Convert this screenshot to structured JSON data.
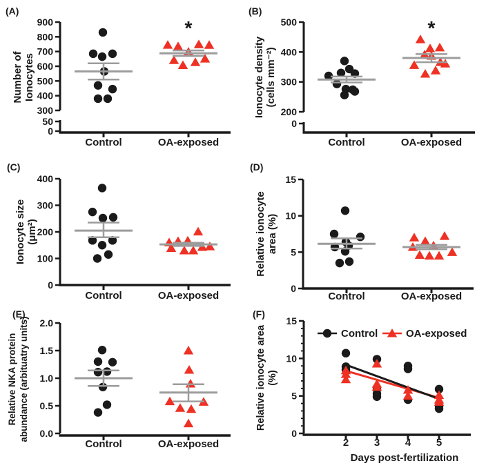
{
  "colors": {
    "control": "#1a1a1a",
    "oa_exposed": "#ee3124",
    "stats_line": "#9c9c9c"
  },
  "chart_data": [
    {
      "panel": "(A)",
      "type": "scatter",
      "ylabel_lines": [
        "Number of",
        "Ionocytes"
      ],
      "ylim": [
        300,
        900
      ],
      "yticks": [
        300,
        400,
        500,
        600,
        700,
        800,
        900
      ],
      "break_ticks": [
        50,
        0
      ],
      "categories": [
        "Control",
        "OA-exposed"
      ],
      "significance": {
        "category": "OA-exposed",
        "label": "*"
      },
      "series": [
        {
          "name": "Control",
          "marker": "circle",
          "color": "#1a1a1a",
          "mean": 565,
          "sem": [
            510,
            620
          ],
          "points": [
            {
              "dx": -1,
              "y": 830
            },
            {
              "dx": -15,
              "y": 685
            },
            {
              "dx": 13,
              "y": 685
            },
            {
              "dx": -2,
              "y": 665
            },
            {
              "dx": 1,
              "y": 565
            },
            {
              "dx": -8,
              "y": 470
            },
            {
              "dx": 13,
              "y": 445
            },
            {
              "dx": -8,
              "y": 380
            },
            {
              "dx": 6,
              "y": 380
            }
          ]
        },
        {
          "name": "OA-exposed",
          "marker": "triangle",
          "color": "#ee3124",
          "mean": 688,
          "sem": [
            670,
            707
          ],
          "points": [
            {
              "dx": -30,
              "y": 745
            },
            {
              "dx": -15,
              "y": 735
            },
            {
              "dx": 15,
              "y": 748
            },
            {
              "dx": 30,
              "y": 744
            },
            {
              "dx": 0,
              "y": 698
            },
            {
              "dx": -21,
              "y": 641
            },
            {
              "dx": -8,
              "y": 607
            },
            {
              "dx": 10,
              "y": 627
            },
            {
              "dx": 24,
              "y": 651
            }
          ]
        }
      ]
    },
    {
      "panel": "(B)",
      "type": "scatter",
      "ylabel_lines": [
        "Ionocyte density",
        "(cells mm⁻²)"
      ],
      "ylim": [
        200,
        500
      ],
      "yticks": [
        200,
        300,
        400,
        500
      ],
      "break_ticks": [
        0
      ],
      "categories": [
        "Control",
        "OA-exposed"
      ],
      "significance": {
        "category": "OA-exposed",
        "label": "*"
      },
      "series": [
        {
          "name": "Control",
          "marker": "circle",
          "color": "#1a1a1a",
          "mean": 308,
          "sem": [
            298,
            318
          ],
          "points": [
            {
              "dx": -3,
              "y": 370
            },
            {
              "dx": 4,
              "y": 343
            },
            {
              "dx": -8,
              "y": 330
            },
            {
              "dx": 12,
              "y": 328
            },
            {
              "dx": -26,
              "y": 320
            },
            {
              "dx": -14,
              "y": 293
            },
            {
              "dx": -1,
              "y": 276
            },
            {
              "dx": 9,
              "y": 274
            },
            {
              "dx": 12,
              "y": 268
            },
            {
              "dx": -3,
              "y": 256
            }
          ]
        },
        {
          "name": "OA-exposed",
          "marker": "triangle",
          "color": "#ee3124",
          "mean": 380,
          "sem": [
            366,
            393
          ],
          "points": [
            {
              "dx": -16,
              "y": 442
            },
            {
              "dx": -2,
              "y": 412
            },
            {
              "dx": 12,
              "y": 415
            },
            {
              "dx": -10,
              "y": 391
            },
            {
              "dx": 0,
              "y": 387
            },
            {
              "dx": -25,
              "y": 356
            },
            {
              "dx": 13,
              "y": 366
            },
            {
              "dx": 20,
              "y": 361
            },
            {
              "dx": 6,
              "y": 338
            },
            {
              "dx": -9,
              "y": 327
            }
          ]
        }
      ]
    },
    {
      "panel": "(C)",
      "type": "scatter",
      "ylabel_lines": [
        "Ionocyte size",
        "(μm²)"
      ],
      "ylim": [
        0,
        400
      ],
      "yticks": [
        0,
        100,
        200,
        300,
        400
      ],
      "categories": [
        "Control",
        "OA-exposed"
      ],
      "series": [
        {
          "name": "Control",
          "marker": "circle",
          "color": "#1a1a1a",
          "mean": 205,
          "sem": [
            180,
            235
          ],
          "points": [
            {
              "dx": -2,
              "y": 365
            },
            {
              "dx": -16,
              "y": 275
            },
            {
              "dx": 14,
              "y": 255
            },
            {
              "dx": -1,
              "y": 252
            },
            {
              "dx": -16,
              "y": 168
            },
            {
              "dx": 13,
              "y": 168
            },
            {
              "dx": -2,
              "y": 150
            },
            {
              "dx": 7,
              "y": 115
            },
            {
              "dx": -9,
              "y": 100
            }
          ]
        },
        {
          "name": "OA-exposed",
          "marker": "triangle",
          "color": "#ee3124",
          "mean": 153,
          "sem": [
            147,
            159
          ],
          "points": [
            {
              "dx": 14,
              "y": 201
            },
            {
              "dx": -1,
              "y": 167
            },
            {
              "dx": -15,
              "y": 165
            },
            {
              "dx": -28,
              "y": 160
            },
            {
              "dx": 31,
              "y": 145
            },
            {
              "dx": 20,
              "y": 143
            },
            {
              "dx": -25,
              "y": 139
            },
            {
              "dx": -6,
              "y": 130
            },
            {
              "dx": 7,
              "y": 130
            }
          ]
        }
      ]
    },
    {
      "panel": "(D)",
      "type": "scatter",
      "ylabel_lines": [
        "Relative ionocyte",
        "area (%)"
      ],
      "ylim": [
        0,
        15
      ],
      "yticks": [
        0,
        5,
        10,
        15
      ],
      "categories": [
        "Control",
        "OA-exposed"
      ],
      "series": [
        {
          "name": "Control",
          "marker": "circle",
          "color": "#1a1a1a",
          "mean": 6.15,
          "sem": [
            5.5,
            6.9
          ],
          "points": [
            {
              "dx": -2,
              "y": 10.7
            },
            {
              "dx": -18,
              "y": 7.5
            },
            {
              "dx": 20,
              "y": 7.1
            },
            {
              "dx": -1,
              "y": 6.4
            },
            {
              "dx": 3,
              "y": 5.9
            },
            {
              "dx": -17,
              "y": 5.7
            },
            {
              "dx": -2,
              "y": 5.1
            },
            {
              "dx": 4,
              "y": 3.7
            },
            {
              "dx": -10,
              "y": 3.5
            }
          ]
        },
        {
          "name": "OA-exposed",
          "marker": "triangle",
          "color": "#ee3124",
          "mean": 5.7,
          "sem": [
            5.4,
            6.0
          ],
          "points": [
            {
              "dx": 19,
              "y": 7.2
            },
            {
              "dx": -25,
              "y": 7.0
            },
            {
              "dx": -9,
              "y": 6.5
            },
            {
              "dx": 3,
              "y": 5.9
            },
            {
              "dx": -27,
              "y": 5.7
            },
            {
              "dx": 30,
              "y": 5.0
            },
            {
              "dx": -17,
              "y": 4.6
            },
            {
              "dx": -3,
              "y": 4.5
            },
            {
              "dx": 11,
              "y": 4.5
            }
          ]
        }
      ]
    },
    {
      "panel": "(E)",
      "type": "scatter",
      "ylabel_lines": [
        "Relative NKA protein",
        "abundance (arbituatry units)"
      ],
      "ylim": [
        0,
        2
      ],
      "yticks": [
        0,
        0.5,
        1,
        1.5,
        2
      ],
      "tick_decimals": 1,
      "categories": [
        "Control",
        "OA-exposed"
      ],
      "series": [
        {
          "name": "Control",
          "marker": "circle",
          "color": "#1a1a1a",
          "mean": 1.0,
          "sem": [
            0.86,
            1.14
          ],
          "points": [
            {
              "dx": -2,
              "y": 1.51
            },
            {
              "dx": -8,
              "y": 1.3
            },
            {
              "dx": 13,
              "y": 1.29
            },
            {
              "dx": 5,
              "y": 1.12
            },
            {
              "dx": -8,
              "y": 1.11
            },
            {
              "dx": -1,
              "y": 0.84
            },
            {
              "dx": 5,
              "y": 0.52
            },
            {
              "dx": -8,
              "y": 0.38
            }
          ]
        },
        {
          "name": "OA-exposed",
          "marker": "triangle",
          "color": "#ee3124",
          "mean": 0.74,
          "sem": [
            0.58,
            0.89
          ],
          "points": [
            {
              "dx": 0,
              "y": 1.5
            },
            {
              "dx": 1,
              "y": 1.15
            },
            {
              "dx": 3,
              "y": 0.9
            },
            {
              "dx": -27,
              "y": 0.58
            },
            {
              "dx": 22,
              "y": 0.57
            },
            {
              "dx": -12,
              "y": 0.46
            },
            {
              "dx": 4,
              "y": 0.44
            },
            {
              "dx": 0,
              "y": 0.18
            }
          ]
        }
      ]
    },
    {
      "panel": "(F)",
      "type": "line-scatter",
      "ylabel_lines": [
        "Relative ionocyte area",
        "(%)"
      ],
      "xlabel": "Days post-fertilization",
      "ylim": [
        0,
        15
      ],
      "yticks": [
        0,
        5,
        10,
        15
      ],
      "yminor_step": 1,
      "xticks": [
        2,
        3,
        4,
        5
      ],
      "legend": [
        "Control",
        "OA-exposed"
      ],
      "series": [
        {
          "name": "Control",
          "marker": "circle",
          "color": "#1a1a1a",
          "fit_line": {
            "x1": 2,
            "y1": 9.15,
            "x2": 5,
            "y2": 4.6
          },
          "points": [
            {
              "x": 2,
              "y": 10.7
            },
            {
              "x": 2,
              "y": 8.9
            },
            {
              "x": 2,
              "y": 8.5
            },
            {
              "x": 3,
              "y": 9.9
            },
            {
              "x": 3,
              "y": 5.9
            },
            {
              "x": 3,
              "y": 5.3
            },
            {
              "x": 3,
              "y": 4.9
            },
            {
              "x": 4,
              "y": 9.0
            },
            {
              "x": 4,
              "y": 8.6
            },
            {
              "x": 4,
              "y": 4.5
            },
            {
              "x": 5,
              "y": 5.9
            },
            {
              "x": 5,
              "y": 3.6
            },
            {
              "x": 5,
              "y": 3.3
            }
          ]
        },
        {
          "name": "OA-exposed",
          "marker": "triangle",
          "color": "#ee3124",
          "fit_line": {
            "x1": 2,
            "y1": 8.35,
            "x2": 5,
            "y2": 4.75
          },
          "points": [
            {
              "x": 2,
              "y": 8.4
            },
            {
              "x": 2,
              "y": 7.9
            },
            {
              "x": 2,
              "y": 7.2
            },
            {
              "x": 3,
              "y": 9.3
            },
            {
              "x": 3,
              "y": 6.6
            },
            {
              "x": 3,
              "y": 6.2
            },
            {
              "x": 4,
              "y": 5.8
            },
            {
              "x": 4,
              "y": 5.0
            },
            {
              "x": 5,
              "y": 5.1
            },
            {
              "x": 5,
              "y": 4.5
            },
            {
              "x": 5,
              "y": 4.2
            }
          ]
        }
      ]
    }
  ]
}
